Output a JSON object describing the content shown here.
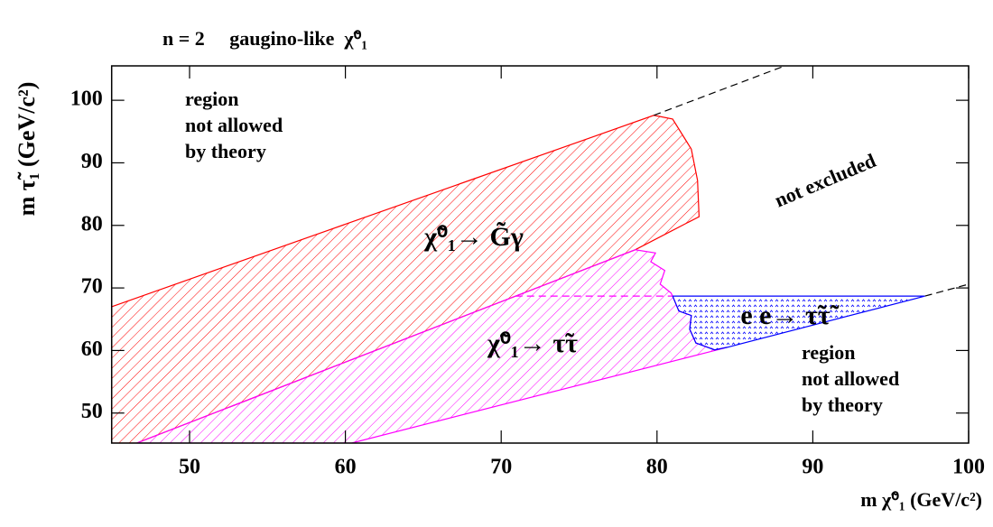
{
  "chart_data": {
    "type": "region",
    "title": "n = 2     gaugino-like  χ̃⁰₁",
    "x_label": "m χ̃⁰₁ (GeV/c²)",
    "y_label": "m τ̃₁ (GeV/c²)",
    "xlim": [
      45,
      100
    ],
    "ylim": [
      45.2,
      105.5
    ],
    "xticks": [
      50,
      60,
      70,
      80,
      90,
      100
    ],
    "yticks": [
      50,
      60,
      70,
      80,
      90,
      100
    ],
    "regions": [
      {
        "name": "χ̃⁰₁→ G̃γ",
        "color": "#ff0000",
        "pattern": "hatch",
        "x": [
          45,
          79.8,
          81,
          82.2,
          82.6,
          82.7,
          78.6,
          46.6,
          45
        ],
        "y": [
          67.0,
          97.6,
          97,
          92.2,
          87.2,
          81.4,
          76.1,
          45.2,
          45.2
        ]
      },
      {
        "name": "χ̃⁰₁→ τ̃τ",
        "color": "#ff00ff",
        "pattern": "hatch",
        "x": [
          46.6,
          78.6,
          79.9,
          79.6,
          80.5,
          80.2,
          80.9,
          81,
          81.4,
          82.2,
          82.1,
          82.5,
          83.7,
          84.5,
          60.4
        ],
        "y": [
          45.2,
          76.1,
          75.6,
          74.2,
          72.8,
          70.6,
          69.2,
          68.7,
          66.3,
          65.6,
          63.4,
          61.2,
          60.1,
          60.5,
          45.2
        ]
      },
      {
        "name": "e e→ τ̃τ̃",
        "color": "#0000ff",
        "pattern": "dots",
        "x": [
          81,
          97.2,
          84.5,
          83.7,
          82.5,
          82.1,
          82.2,
          81.4
        ],
        "y": [
          68.7,
          68.7,
          60.5,
          60.1,
          61.2,
          63.4,
          65.6,
          66.3
        ]
      }
    ],
    "dashed_lines": [
      {
        "color": "#ff00ff",
        "x": [
          70.9,
          81
        ],
        "y": [
          68.7,
          68.7
        ]
      },
      {
        "color": "#000000",
        "x": [
          79.8,
          88.2
        ],
        "y": [
          97.6,
          105.5
        ]
      },
      {
        "color": "#000000",
        "x": [
          97.2,
          100
        ],
        "y": [
          68.7,
          70.6
        ]
      }
    ],
    "annotations": [
      "region",
      "not allowed",
      "by theory",
      "region",
      "not allowed",
      "by theory",
      "not excluded"
    ]
  }
}
